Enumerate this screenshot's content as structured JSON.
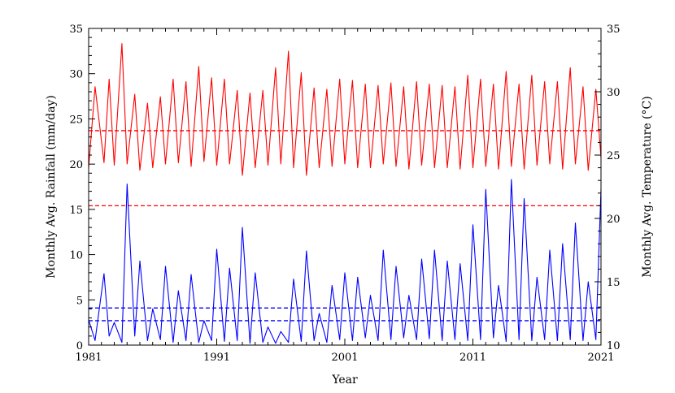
{
  "chart_data": {
    "type": "line",
    "xlabel": "Year",
    "ylabel_left": "Monthly Avg. Rainfall (mm/day)",
    "ylabel_right": "Monthly Avg. Temperature (°C)",
    "xlim": [
      1981,
      2021
    ],
    "ylim_left": [
      0,
      35
    ],
    "ylim_right": [
      10,
      35
    ],
    "x_ticks": [
      1981,
      1991,
      2001,
      2011,
      2021
    ],
    "y_ticks_left": [
      0,
      5,
      10,
      15,
      20,
      25,
      30,
      35
    ],
    "y_ticks_right": [
      10,
      15,
      20,
      25,
      30,
      35
    ],
    "grid": false,
    "series": [
      {
        "axis": "left",
        "color": "#0000ff",
        "style": "solid",
        "sampling": "annual approximate peaks and troughs",
        "x": [
          1981.0,
          1981.5,
          1982.2,
          1982.6,
          1983.0,
          1983.6,
          1984.0,
          1984.6,
          1985.0,
          1985.6,
          1986.0,
          1986.6,
          1987.0,
          1987.6,
          1988.0,
          1988.6,
          1989.0,
          1989.6,
          1990.0,
          1990.6,
          1991.0,
          1991.6,
          1992.0,
          1992.6,
          1993.0,
          1993.6,
          1994.0,
          1994.6,
          1995.0,
          1995.6,
          1996.0,
          1996.6,
          1997.0,
          1997.6,
          1998.0,
          1998.6,
          1999.0,
          1999.6,
          2000.0,
          2000.6,
          2001.0,
          2001.6,
          2002.0,
          2002.6,
          2003.0,
          2003.6,
          2004.0,
          2004.6,
          2005.0,
          2005.6,
          2006.0,
          2006.6,
          2007.0,
          2007.6,
          2008.0,
          2008.6,
          2009.0,
          2009.6,
          2010.0,
          2010.6,
          2011.0,
          2011.6,
          2012.0,
          2012.6,
          2013.0,
          2013.6,
          2014.0,
          2014.6,
          2015.0,
          2015.6,
          2016.0,
          2016.6,
          2017.0,
          2017.6,
          2018.0,
          2018.6,
          2019.0,
          2019.6,
          2020.0,
          2020.6,
          2021.0
        ],
        "y": [
          2.8,
          0.5,
          7.9,
          1.0,
          2.5,
          0.3,
          17.8,
          1.0,
          9.3,
          0.5,
          4.0,
          0.6,
          8.7,
          0.3,
          6.0,
          0.5,
          7.8,
          0.3,
          2.7,
          0.5,
          10.6,
          0.4,
          8.5,
          0.5,
          13.0,
          0.2,
          8.0,
          0.3,
          2.0,
          0.2,
          1.5,
          0.3,
          7.3,
          0.4,
          10.4,
          0.5,
          3.5,
          0.3,
          6.6,
          0.6,
          8.0,
          0.5,
          7.5,
          0.8,
          5.5,
          0.5,
          10.5,
          0.6,
          8.7,
          0.8,
          5.5,
          0.6,
          9.5,
          0.7,
          10.5,
          0.5,
          9.3,
          0.6,
          9.0,
          0.5,
          13.3,
          0.6,
          17.2,
          0.8,
          6.6,
          0.4,
          18.3,
          0.6,
          16.2,
          0.5,
          7.5,
          0.6,
          10.5,
          0.5,
          11.2,
          0.6,
          13.5,
          0.5,
          7.0,
          0.6,
          17.2
        ]
      },
      {
        "axis": "right",
        "color": "#ff0000",
        "style": "solid",
        "sampling": "annual approximate peaks and troughs",
        "x": [
          1981.0,
          1981.5,
          1982.2,
          1982.6,
          1983.0,
          1983.6,
          1984.0,
          1984.6,
          1985.0,
          1985.6,
          1986.0,
          1986.6,
          1987.0,
          1987.6,
          1988.0,
          1988.6,
          1989.0,
          1989.6,
          1990.0,
          1990.6,
          1991.0,
          1991.6,
          1992.0,
          1992.6,
          1993.0,
          1993.6,
          1994.0,
          1994.6,
          1995.0,
          1995.6,
          1996.0,
          1996.6,
          1997.0,
          1997.6,
          1998.0,
          1998.6,
          1999.0,
          1999.6,
          2000.0,
          2000.6,
          2001.0,
          2001.6,
          2002.0,
          2002.6,
          2003.0,
          2003.6,
          2004.0,
          2004.6,
          2005.0,
          2005.6,
          2006.0,
          2006.6,
          2007.0,
          2007.6,
          2008.0,
          2008.6,
          2009.0,
          2009.6,
          2010.0,
          2010.6,
          2011.0,
          2011.6,
          2012.0,
          2012.6,
          2013.0,
          2013.6,
          2014.0,
          2014.6,
          2015.0,
          2015.6,
          2016.0,
          2016.6,
          2017.0,
          2017.6,
          2018.0,
          2018.6,
          2019.0,
          2019.6,
          2020.0,
          2020.6,
          2021.0
        ],
        "y": [
          24.0,
          30.4,
          24.4,
          31.0,
          24.2,
          33.8,
          24.3,
          29.8,
          23.8,
          29.1,
          24.0,
          29.6,
          24.3,
          31.0,
          24.4,
          30.8,
          24.1,
          32.0,
          24.5,
          31.1,
          24.2,
          31.0,
          24.3,
          30.1,
          23.4,
          29.9,
          24.0,
          30.1,
          24.2,
          31.9,
          24.3,
          33.2,
          24.0,
          31.5,
          23.4,
          30.3,
          24.0,
          30.2,
          24.1,
          31.0,
          24.3,
          30.9,
          24.0,
          30.6,
          24.0,
          30.5,
          24.3,
          30.7,
          24.1,
          30.4,
          23.9,
          30.8,
          24.2,
          30.6,
          24.0,
          30.5,
          24.0,
          30.4,
          23.9,
          31.3,
          24.0,
          31.0,
          24.1,
          30.6,
          23.9,
          31.6,
          24.1,
          30.6,
          23.9,
          31.3,
          24.2,
          30.8,
          24.3,
          30.8,
          23.9,
          31.9,
          24.3,
          30.4,
          23.8,
          30.2,
          24.8
        ]
      }
    ],
    "reference_lines": [
      {
        "axis": "left",
        "value": 23.7,
        "color": "#ff0000",
        "style": "dashed"
      },
      {
        "axis": "left",
        "value": 15.4,
        "color": "#ff0000",
        "style": "dashed"
      },
      {
        "axis": "left",
        "value": 4.1,
        "color": "#0000ff",
        "style": "dashed"
      },
      {
        "axis": "left",
        "value": 2.7,
        "color": "#0000ff",
        "style": "dashed"
      }
    ]
  }
}
